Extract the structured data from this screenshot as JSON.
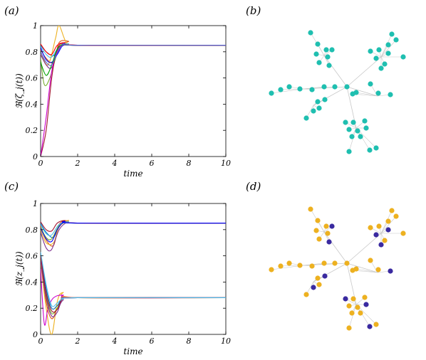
{
  "panel_labels": [
    "(a)",
    "(b)",
    "(c)",
    "(d)"
  ],
  "chart_data": [
    {
      "panel": "(a)",
      "type": "line",
      "title": "",
      "xlabel": "time",
      "ylabel": "ℜ(ζ_j(t))",
      "xlim": [
        0,
        10
      ],
      "ylim": [
        0,
        1
      ],
      "xticks": [
        "0",
        "2",
        "4",
        "6",
        "8",
        "10"
      ],
      "yticks": [
        "0",
        "0.2",
        "0.4",
        "0.6",
        "0.8",
        "1"
      ],
      "grid": false,
      "series": [
        {
          "color": "#0072BD",
          "x": [
            0,
            0.3,
            0.7,
            1.0,
            1.5,
            2,
            10
          ],
          "y": [
            0.85,
            0.8,
            0.77,
            0.83,
            0.86,
            0.85,
            0.85
          ]
        },
        {
          "color": "#D95319",
          "x": [
            0,
            0.3,
            0.7,
            1.0,
            1.5,
            2,
            10
          ],
          "y": [
            0.82,
            0.75,
            0.72,
            0.87,
            0.88,
            0.85,
            0.85
          ]
        },
        {
          "color": "#EDB120",
          "x": [
            0,
            0.4,
            0.8,
            1.0,
            1.4,
            2,
            10
          ],
          "y": [
            0.8,
            0.7,
            0.9,
            1.0,
            0.87,
            0.85,
            0.85
          ]
        },
        {
          "color": "#7E2F8E",
          "x": [
            0,
            0.3,
            0.6,
            1.0,
            1.5,
            2,
            10
          ],
          "y": [
            0.78,
            0.7,
            0.68,
            0.82,
            0.86,
            0.85,
            0.85
          ]
        },
        {
          "color": "#77AC30",
          "x": [
            0,
            0.2,
            0.5,
            1.0,
            1.5,
            2,
            10
          ],
          "y": [
            0.75,
            0.55,
            0.6,
            0.83,
            0.86,
            0.85,
            0.85
          ]
        },
        {
          "color": "#4DBEEE",
          "x": [
            0,
            0.3,
            0.6,
            1.0,
            1.5,
            2,
            10
          ],
          "y": [
            0.84,
            0.78,
            0.76,
            0.84,
            0.86,
            0.85,
            0.85
          ]
        },
        {
          "color": "#A2142F",
          "x": [
            0,
            0.3,
            0.6,
            0.9,
            1.3,
            2,
            10
          ],
          "y": [
            0.0,
            0.2,
            0.6,
            0.82,
            0.87,
            0.85,
            0.85
          ]
        },
        {
          "color": "#CC00CC",
          "x": [
            0,
            0.3,
            0.6,
            0.9,
            1.3,
            2,
            10
          ],
          "y": [
            0.0,
            0.3,
            0.65,
            0.8,
            0.86,
            0.85,
            0.85
          ]
        },
        {
          "color": "#0000FF",
          "x": [
            0,
            0.3,
            0.6,
            0.9,
            1.3,
            2,
            10
          ],
          "y": [
            0.83,
            0.74,
            0.72,
            0.78,
            0.86,
            0.85,
            0.85
          ]
        },
        {
          "color": "#00A000",
          "x": [
            0,
            0.3,
            0.6,
            0.9,
            1.3,
            2,
            10
          ],
          "y": [
            0.72,
            0.62,
            0.7,
            0.82,
            0.86,
            0.85,
            0.85
          ]
        },
        {
          "color": "#FF0000",
          "x": [
            0,
            0.3,
            0.6,
            0.9,
            1.3,
            2,
            10
          ],
          "y": [
            0.86,
            0.8,
            0.78,
            0.85,
            0.87,
            0.85,
            0.85
          ]
        },
        {
          "color": "#5060D0",
          "x": [
            0,
            0.3,
            0.6,
            0.9,
            1.3,
            2,
            10
          ],
          "y": [
            0.8,
            0.72,
            0.7,
            0.79,
            0.86,
            0.85,
            0.85
          ]
        }
      ]
    },
    {
      "panel": "(c)",
      "type": "line",
      "title": "",
      "xlabel": "time",
      "ylabel": "ℜ(z_j(t))",
      "xlim": [
        0,
        10
      ],
      "ylim": [
        0,
        1
      ],
      "xticks": [
        "0",
        "2",
        "4",
        "6",
        "8",
        "10"
      ],
      "yticks": [
        "0",
        "0.2",
        "0.4",
        "0.6",
        "0.8",
        "1"
      ],
      "grid": false,
      "series": [
        {
          "color": "#0072BD",
          "x": [
            0,
            0.3,
            0.7,
            1.0,
            1.5,
            2,
            10
          ],
          "y": [
            0.85,
            0.78,
            0.74,
            0.83,
            0.86,
            0.85,
            0.85
          ]
        },
        {
          "color": "#D95319",
          "x": [
            0,
            0.3,
            0.7,
            1.0,
            1.5,
            2,
            10
          ],
          "y": [
            0.83,
            0.72,
            0.68,
            0.84,
            0.87,
            0.85,
            0.85
          ]
        },
        {
          "color": "#EDB120",
          "x": [
            0,
            0.3,
            0.7,
            1.0,
            1.5,
            2,
            10
          ],
          "y": [
            0.8,
            0.7,
            0.7,
            0.82,
            0.87,
            0.85,
            0.85
          ]
        },
        {
          "color": "#7E2F8E",
          "x": [
            0,
            0.3,
            0.6,
            1.0,
            1.5,
            2,
            10
          ],
          "y": [
            0.78,
            0.66,
            0.65,
            0.8,
            0.86,
            0.85,
            0.85
          ]
        },
        {
          "color": "#77AC30",
          "x": [
            0,
            0.3,
            0.6,
            1.0,
            1.5,
            2,
            10
          ],
          "y": [
            0.82,
            0.74,
            0.73,
            0.83,
            0.86,
            0.85,
            0.85
          ]
        },
        {
          "color": "#4DBEEE",
          "x": [
            0,
            0.3,
            0.6,
            1.0,
            1.5,
            2,
            10
          ],
          "y": [
            0.84,
            0.77,
            0.76,
            0.84,
            0.86,
            0.85,
            0.85
          ]
        },
        {
          "color": "#A2142F",
          "x": [
            0,
            0.3,
            0.6,
            0.9,
            1.3,
            2,
            10
          ],
          "y": [
            0.86,
            0.8,
            0.79,
            0.85,
            0.87,
            0.85,
            0.85
          ]
        },
        {
          "color": "#0000FF",
          "x": [
            0,
            0.3,
            0.6,
            0.9,
            1.3,
            2,
            10
          ],
          "y": [
            0.81,
            0.73,
            0.71,
            0.8,
            0.86,
            0.85,
            0.85
          ]
        },
        {
          "color": "#EDB120",
          "x": [
            0,
            0.3,
            0.6,
            0.9,
            1.2,
            2,
            10
          ],
          "y": [
            0.55,
            0.2,
            0.0,
            0.25,
            0.32,
            0.28,
            0.28
          ]
        },
        {
          "color": "#CC00CC",
          "x": [
            0,
            0.2,
            0.4,
            0.7,
            1.2,
            2,
            10
          ],
          "y": [
            0.5,
            0.08,
            0.2,
            0.28,
            0.3,
            0.28,
            0.28
          ]
        },
        {
          "color": "#D95319",
          "x": [
            0,
            0.3,
            0.6,
            0.9,
            1.2,
            2,
            10
          ],
          "y": [
            0.6,
            0.25,
            0.12,
            0.2,
            0.28,
            0.28,
            0.28
          ]
        },
        {
          "color": "#77AC30",
          "x": [
            0,
            0.3,
            0.6,
            0.9,
            1.2,
            2,
            10
          ],
          "y": [
            0.58,
            0.3,
            0.16,
            0.2,
            0.27,
            0.28,
            0.28
          ]
        },
        {
          "color": "#0072BD",
          "x": [
            0,
            0.3,
            0.6,
            0.9,
            1.2,
            2,
            10
          ],
          "y": [
            0.62,
            0.35,
            0.2,
            0.22,
            0.27,
            0.28,
            0.28
          ]
        },
        {
          "color": "#7E2F8E",
          "x": [
            0,
            0.3,
            0.6,
            0.9,
            1.2,
            2,
            10
          ],
          "y": [
            0.56,
            0.28,
            0.14,
            0.17,
            0.26,
            0.28,
            0.28
          ]
        },
        {
          "color": "#A2142F",
          "x": [
            0,
            0.3,
            0.6,
            0.9,
            1.2,
            2,
            10
          ],
          "y": [
            0.6,
            0.32,
            0.18,
            0.19,
            0.27,
            0.28,
            0.28
          ]
        },
        {
          "color": "#4DBEEE",
          "x": [
            0,
            0.3,
            0.6,
            0.9,
            1.2,
            2,
            10
          ],
          "y": [
            0.63,
            0.38,
            0.22,
            0.24,
            0.27,
            0.28,
            0.28
          ]
        }
      ]
    },
    {
      "panel": "(b)",
      "type": "scatter",
      "title": "",
      "network": true,
      "node_color": "#1FBFB0",
      "edge_color": "#c8c8c8",
      "hub": [
        0.5,
        0.5
      ],
      "nodes": [
        [
          0.0,
          0.0
        ],
        [
          0.05,
          0.25
        ],
        [
          0.25,
          0.02
        ],
        [
          0.18,
          0.05
        ],
        [
          -0.05,
          -0.3
        ],
        [
          -0.15,
          0.02
        ],
        [
          0.35,
          0.35
        ],
        [
          0.45,
          0.55
        ],
        [
          0.55,
          0.4
        ],
        [
          0.6,
          0.6
        ]
      ]
    },
    {
      "panel": "(d)",
      "type": "scatter",
      "title": "",
      "network": true,
      "colors": {
        "major": "#EDB120",
        "minor": "#3A2AA0"
      }
    }
  ]
}
